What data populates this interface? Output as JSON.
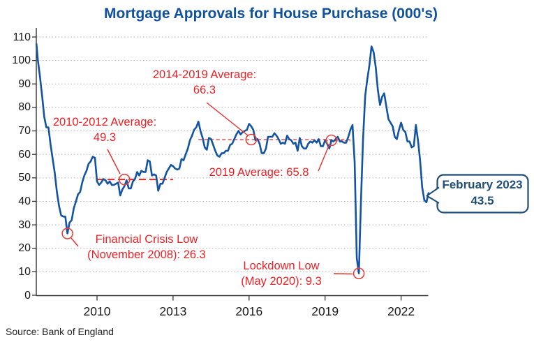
{
  "title": "Mortgage Approvals for House Purchase (000's)",
  "source": "Source: Bank of England",
  "colors": {
    "title_blue": "#10529e",
    "line_blue": "#1254a2",
    "annotation_red": "#ee2025",
    "callout_navy": "#1f4e79",
    "grid_gray": "#b0b0b0",
    "axis_dark": "#333333"
  },
  "annotations": {
    "avg_2014_2019": {
      "line1": "2014-2019 Average:",
      "line2": "66.3"
    },
    "avg_2010_2012": {
      "line1": "2010-2012 Average:",
      "line2": "49.3"
    },
    "avg_2019": {
      "line1": "2019 Average: 65.8"
    },
    "crisis": {
      "line1": "Financial Crisis Low",
      "line2": "(November 2008): 26.3"
    },
    "lockdown": {
      "line1": "Lockdown Low",
      "line2": "(May 2020): 9.3"
    }
  },
  "callout": {
    "line1": "February 2023",
    "line2": "43.5"
  },
  "chart_data": {
    "type": "line",
    "title": "Mortgage Approvals for House Purchase (000's)",
    "unit": "thousands of approvals per month",
    "frequency": "monthly",
    "start": "2007-08",
    "end": "2023-02",
    "ylim": [
      0,
      110
    ],
    "grid": "dotted horizontal",
    "y_ticks": [
      0,
      10,
      20,
      30,
      40,
      50,
      60,
      70,
      80,
      90,
      100,
      110
    ],
    "x_ticks": [
      {
        "label": "2010",
        "date": "2010-01"
      },
      {
        "label": "2013",
        "date": "2013-01"
      },
      {
        "label": "2016",
        "date": "2016-01"
      },
      {
        "label": "2019",
        "date": "2019-01"
      },
      {
        "label": "2022",
        "date": "2022-01"
      }
    ],
    "series": [
      {
        "name": "Mortgage approvals for house purchase (000's)",
        "values": [
          107,
          100,
          93,
          85,
          76,
          71.5,
          71.5,
          64,
          58,
          52,
          44,
          38,
          34,
          33.5,
          33.5,
          26.3,
          31,
          32,
          37,
          40,
          43,
          44,
          48,
          51,
          53,
          56,
          57,
          59,
          58.5,
          48.5,
          47,
          48,
          49.5,
          49,
          47.5,
          48.5,
          47,
          47,
          47.5,
          48,
          42.5,
          45,
          46.5,
          49,
          45.5,
          45.5,
          48.5,
          49.5,
          52.5,
          51,
          53,
          52.5,
          52.5,
          57.5,
          57,
          51,
          51.5,
          51,
          44.5,
          47.5,
          47.5,
          50,
          52.5,
          54,
          55.5,
          55,
          54,
          53.5,
          54,
          58,
          57.5,
          60,
          62.5,
          66,
          68,
          70.5,
          71.5,
          74,
          70,
          67,
          63,
          62,
          67,
          66.5,
          64,
          61.5,
          59.5,
          59,
          60.5,
          60.5,
          61.5,
          61.5,
          64,
          64.5,
          66.5,
          68.5,
          70,
          68.5,
          69.5,
          70,
          70.5,
          73,
          72,
          70.5,
          66,
          66.5,
          64.5,
          60.5,
          60.5,
          62.5,
          67.5,
          67.5,
          67.5,
          69,
          68,
          66.5,
          64.5,
          65,
          64.5,
          68,
          66.5,
          66,
          64.5,
          65,
          61.5,
          67,
          63.5,
          62.5,
          62.5,
          64.5,
          65.5,
          65,
          66,
          65,
          66.5,
          63.5,
          63.5,
          66,
          64.5,
          62.5,
          66,
          65.5,
          66.5,
          67.5,
          65.5,
          65.5,
          65,
          65,
          67.5,
          70.5,
          72.5,
          56.5,
          15.8,
          9.3,
          40,
          66.5,
          85,
          92,
          98,
          106,
          103.5,
          97,
          87.5,
          81,
          84.5,
          86,
          80.5,
          75,
          73.5,
          72,
          67.5,
          66.5,
          70.5,
          73.5,
          70.5,
          69.5,
          65.5,
          65.5,
          63,
          63.5,
          72.5,
          66,
          57.5,
          46,
          40.5,
          39.6,
          43.5
        ]
      }
    ],
    "averages": [
      {
        "label": "2010-2012 Average",
        "value": 49.3,
        "from": "2010-01",
        "to": "2013-01",
        "color": "#e02b2b",
        "dash": "10 5",
        "width": 2
      },
      {
        "label": "2014-2019 Average",
        "value": 66.3,
        "from": "2014-01",
        "to": "2020-01",
        "color": "#e96868",
        "dash": "5 3.5",
        "width": 1.7
      },
      {
        "label": "2019 Average",
        "value": 65.8,
        "from": "2019-01",
        "to": "2020-01",
        "color": "#e35050",
        "dash": "4 3",
        "width": 1.7
      }
    ],
    "key_points": [
      {
        "label": "Financial Crisis Low",
        "date": "2008-11",
        "value": 26.3
      },
      {
        "label": "Lockdown Low",
        "date": "2020-05",
        "value": 9.3
      },
      {
        "label": "February 2023",
        "date": "2023-02",
        "value": 43.5
      }
    ],
    "markers": [
      {
        "date": "2011-02",
        "value": 49.3
      },
      {
        "date": "2016-02",
        "value": 66.3
      },
      {
        "date": "2019-04",
        "value": 66.0
      },
      {
        "date": "2008-11",
        "value": 26.3
      },
      {
        "date": "2020-05",
        "value": 9.3
      }
    ],
    "legend": "none"
  }
}
